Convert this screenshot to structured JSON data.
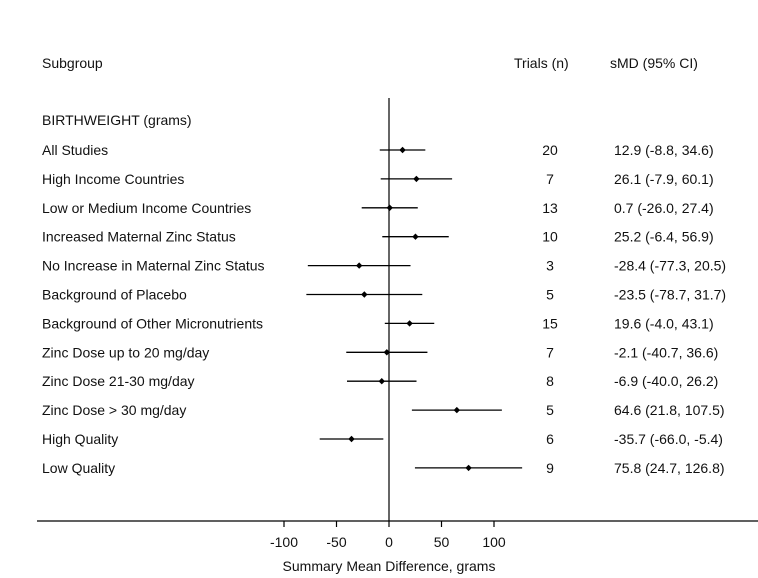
{
  "chart_data": {
    "type": "forest",
    "headers": {
      "subgroup": "Subgroup",
      "trials": "Trials (n)",
      "effect": "sMD (95% CI)"
    },
    "section_label": "BIRTHWEIGHT (grams)",
    "xlabel": "Summary Mean Difference, grams",
    "xlim": [
      -100,
      100
    ],
    "xticks": [
      -100,
      -50,
      0,
      50,
      100
    ],
    "reference_line": 0,
    "rows": [
      {
        "label": "All Studies",
        "trials": "20",
        "est": 12.9,
        "lo": -8.8,
        "hi": 34.6,
        "ci_text": "12.9 (-8.8, 34.6)"
      },
      {
        "label": "High Income Countries",
        "trials": "7",
        "est": 26.1,
        "lo": -7.9,
        "hi": 60.1,
        "ci_text": "26.1 (-7.9, 60.1)"
      },
      {
        "label": "Low or Medium Income Countries",
        "trials": "13",
        "est": 0.7,
        "lo": -26.0,
        "hi": 27.4,
        "ci_text": "0.7 (-26.0, 27.4)"
      },
      {
        "label": "Increased Maternal Zinc Status",
        "trials": "10",
        "est": 25.2,
        "lo": -6.4,
        "hi": 56.9,
        "ci_text": "25.2 (-6.4, 56.9)"
      },
      {
        "label": "No Increase in Maternal Zinc Status",
        "trials": "3",
        "est": -28.4,
        "lo": -77.3,
        "hi": 20.5,
        "ci_text": "-28.4 (-77.3, 20.5)"
      },
      {
        "label": "Background of Placebo",
        "trials": "5",
        "est": -23.5,
        "lo": -78.7,
        "hi": 31.7,
        "ci_text": "-23.5 (-78.7, 31.7)"
      },
      {
        "label": "Background of Other Micronutrients",
        "trials": "15",
        "est": 19.6,
        "lo": -4.0,
        "hi": 43.1,
        "ci_text": "19.6 (-4.0, 43.1)"
      },
      {
        "label": "Zinc Dose up to 20 mg/day",
        "trials": "7",
        "est": -2.1,
        "lo": -40.7,
        "hi": 36.6,
        "ci_text": "-2.1 (-40.7, 36.6)"
      },
      {
        "label": "Zinc Dose 21-30 mg/day",
        "trials": "8",
        "est": -6.9,
        "lo": -40.0,
        "hi": 26.2,
        "ci_text": "-6.9 (-40.0, 26.2)"
      },
      {
        "label": "Zinc Dose > 30 mg/day",
        "trials": "5",
        "est": 64.6,
        "lo": 21.8,
        "hi": 107.5,
        "ci_text": "64.6 (21.8, 107.5)"
      },
      {
        "label": "High Quality",
        "trials": "6",
        "est": -35.7,
        "lo": -66.0,
        "hi": -5.4,
        "ci_text": "-35.7 (-66.0, -5.4)"
      },
      {
        "label": "Low Quality",
        "trials": "9",
        "est": 75.8,
        "lo": 24.7,
        "hi": 126.8,
        "ci_text": "75.8 (24.7, 126.8)"
      }
    ]
  }
}
